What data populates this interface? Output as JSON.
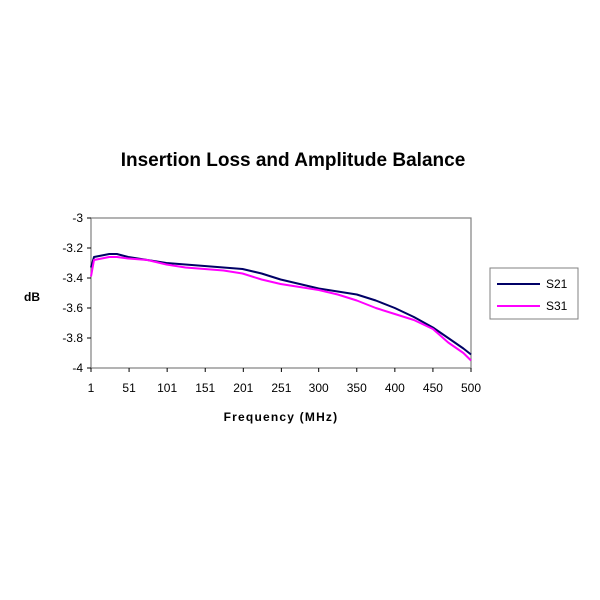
{
  "chart_data": {
    "type": "line",
    "title": "Insertion Loss and Amplitude Balance",
    "xlabel": "Frequency (MHz)",
    "ylabel": "dB",
    "xlim": [
      1,
      500
    ],
    "ylim": [
      -4,
      -3
    ],
    "x_ticks": [
      1,
      51,
      101,
      151,
      201,
      251,
      300,
      350,
      400,
      450,
      500
    ],
    "y_ticks": [
      -3,
      -3.2,
      -3.4,
      -3.6,
      -3.8,
      -4
    ],
    "x_tick_labels": [
      "1",
      "51",
      "101",
      "151",
      "201",
      "251",
      "300",
      "350",
      "400",
      "450",
      "500"
    ],
    "y_tick_labels": [
      "-3",
      "-3.2",
      "-3.4",
      "-3.6",
      "-3.8",
      "-4"
    ],
    "grid": false,
    "legend_position": "right",
    "series": [
      {
        "name": "S21",
        "color": "#000066",
        "x": [
          1,
          5,
          15,
          25,
          35,
          50,
          75,
          100,
          125,
          150,
          175,
          200,
          225,
          250,
          275,
          300,
          325,
          350,
          375,
          400,
          425,
          450,
          470,
          490,
          500
        ],
        "y": [
          -3.33,
          -3.26,
          -3.25,
          -3.24,
          -3.24,
          -3.26,
          -3.28,
          -3.3,
          -3.31,
          -3.32,
          -3.33,
          -3.34,
          -3.37,
          -3.41,
          -3.44,
          -3.47,
          -3.49,
          -3.51,
          -3.55,
          -3.6,
          -3.66,
          -3.73,
          -3.8,
          -3.87,
          -3.91
        ]
      },
      {
        "name": "S31",
        "color": "#ff00ff",
        "x": [
          1,
          5,
          15,
          25,
          35,
          50,
          75,
          100,
          125,
          150,
          175,
          200,
          225,
          250,
          275,
          300,
          325,
          350,
          375,
          400,
          425,
          450,
          470,
          490,
          500
        ],
        "y": [
          -3.39,
          -3.28,
          -3.27,
          -3.26,
          -3.26,
          -3.27,
          -3.28,
          -3.31,
          -3.33,
          -3.34,
          -3.35,
          -3.37,
          -3.41,
          -3.44,
          -3.46,
          -3.48,
          -3.51,
          -3.55,
          -3.6,
          -3.64,
          -3.68,
          -3.74,
          -3.83,
          -3.9,
          -3.95
        ]
      }
    ]
  }
}
